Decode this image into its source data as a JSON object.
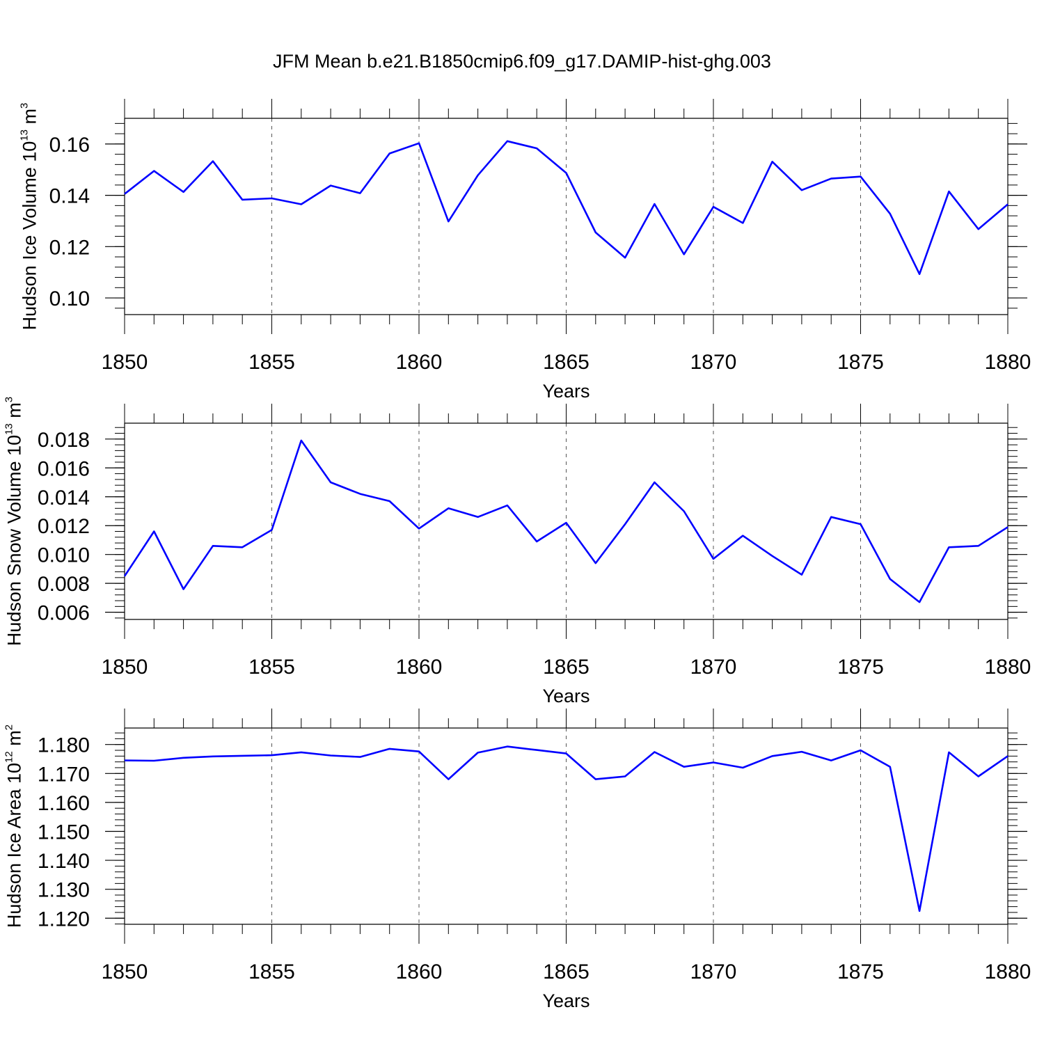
{
  "figure_title": "JFM Mean b.e21.B1850cmip6.f09_g17.DAMIP-hist-ghg.003",
  "colors": {
    "line": "#0000ff",
    "axis": "#000000",
    "grid": "#555555",
    "background": "#ffffff"
  },
  "chart_data": [
    {
      "type": "line",
      "title": "JFM Mean b.e21.B1850cmip6.f09_g17.DAMIP-hist-ghg.003",
      "xlabel": "Years",
      "ylabel": {
        "text": "Hudson Ice Volume 10",
        "sup1": "13",
        "mid": " m",
        "sup2": "3"
      },
      "xlim": [
        1850,
        1880
      ],
      "ylim": [
        0.0935,
        0.17
      ],
      "xticks": [
        1850,
        1855,
        1860,
        1865,
        1870,
        1875,
        1880
      ],
      "yticks": [
        0.1,
        0.12,
        0.14,
        0.16
      ],
      "yticklabels": [
        "0.10",
        "0.12",
        "0.14",
        "0.16"
      ],
      "y_minor_step": 0.004,
      "grid": "vertical-dashed",
      "x": [
        1850,
        1851,
        1852,
        1853,
        1854,
        1855,
        1856,
        1857,
        1858,
        1859,
        1860,
        1861,
        1862,
        1863,
        1864,
        1865,
        1866,
        1867,
        1868,
        1869,
        1870,
        1871,
        1872,
        1873,
        1874,
        1875,
        1876,
        1877,
        1878,
        1879,
        1880
      ],
      "series": [
        {
          "name": "Hudson Ice Volume",
          "values": [
            0.1405,
            0.1495,
            0.1413,
            0.1533,
            0.1383,
            0.1388,
            0.1365,
            0.1438,
            0.1408,
            0.1563,
            0.1603,
            0.1298,
            0.1478,
            0.1611,
            0.1583,
            0.1487,
            0.1255,
            0.1157,
            0.1366,
            0.117,
            0.1355,
            0.1292,
            0.1531,
            0.142,
            0.1465,
            0.1473,
            0.1328,
            0.1093,
            0.1415,
            0.1268,
            0.1365
          ]
        }
      ]
    },
    {
      "type": "line",
      "xlabel": "Years",
      "ylabel": {
        "text": "Hudson Snow Volume 10",
        "sup1": "13",
        "mid": " m",
        "sup2": "3"
      },
      "xlim": [
        1850,
        1880
      ],
      "ylim": [
        0.0055,
        0.0191
      ],
      "xticks": [
        1850,
        1855,
        1860,
        1865,
        1870,
        1875,
        1880
      ],
      "yticks": [
        0.006,
        0.008,
        0.01,
        0.012,
        0.014,
        0.016,
        0.018
      ],
      "yticklabels": [
        "0.006",
        "0.008",
        "0.010",
        "0.012",
        "0.014",
        "0.016",
        "0.018"
      ],
      "y_minor_step": 0.0004,
      "grid": "vertical-dashed",
      "x": [
        1850,
        1851,
        1852,
        1853,
        1854,
        1855,
        1856,
        1857,
        1858,
        1859,
        1860,
        1861,
        1862,
        1863,
        1864,
        1865,
        1866,
        1867,
        1868,
        1869,
        1870,
        1871,
        1872,
        1873,
        1874,
        1875,
        1876,
        1877,
        1878,
        1879,
        1880
      ],
      "series": [
        {
          "name": "Hudson Snow Volume",
          "values": [
            0.0085,
            0.0116,
            0.0076,
            0.0106,
            0.0105,
            0.0117,
            0.0179,
            0.015,
            0.0142,
            0.0137,
            0.0118,
            0.0132,
            0.0126,
            0.0134,
            0.0109,
            0.0122,
            0.0094,
            0.0121,
            0.015,
            0.013,
            0.0097,
            0.0113,
            0.0099,
            0.0086,
            0.0126,
            0.0121,
            0.0083,
            0.0067,
            0.0105,
            0.0106,
            0.0119
          ]
        }
      ]
    },
    {
      "type": "line",
      "xlabel": "Years",
      "ylabel": {
        "text": "Hudson Ice Area 10",
        "sup1": "12",
        "mid": " m",
        "sup2": "2"
      },
      "xlim": [
        1850,
        1880
      ],
      "ylim": [
        1.1179,
        1.1857
      ],
      "xticks": [
        1850,
        1855,
        1860,
        1865,
        1870,
        1875,
        1880
      ],
      "yticks": [
        1.12,
        1.13,
        1.14,
        1.15,
        1.16,
        1.17,
        1.18
      ],
      "yticklabels": [
        "1.120",
        "1.130",
        "1.140",
        "1.150",
        "1.160",
        "1.170",
        "1.180"
      ],
      "y_minor_step": 0.002,
      "grid": "vertical-dashed",
      "x": [
        1850,
        1851,
        1852,
        1853,
        1854,
        1855,
        1856,
        1857,
        1858,
        1859,
        1860,
        1861,
        1862,
        1863,
        1864,
        1865,
        1866,
        1867,
        1868,
        1869,
        1870,
        1871,
        1872,
        1873,
        1874,
        1875,
        1876,
        1877,
        1878,
        1879,
        1880
      ],
      "series": [
        {
          "name": "Hudson Ice Area",
          "values": [
            1.1745,
            1.1744,
            1.1754,
            1.1759,
            1.1761,
            1.1763,
            1.1773,
            1.1762,
            1.1757,
            1.1785,
            1.1776,
            1.168,
            1.1772,
            1.1793,
            1.1781,
            1.1769,
            1.168,
            1.169,
            1.1774,
            1.1723,
            1.1738,
            1.172,
            1.176,
            1.1775,
            1.1745,
            1.178,
            1.1723,
            1.1225,
            1.1773,
            1.169,
            1.176
          ]
        }
      ]
    }
  ]
}
